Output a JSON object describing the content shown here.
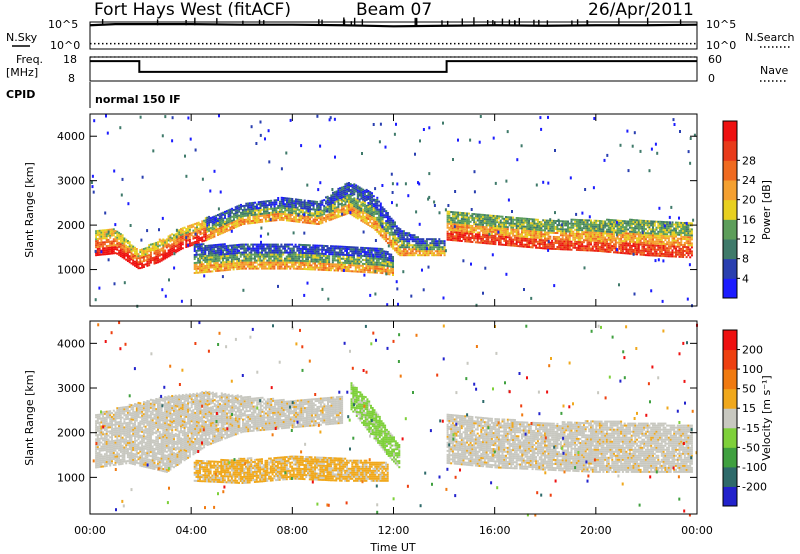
{
  "header": {
    "title": "Fort Hays West (fitACF)",
    "beam": "Beam 07",
    "date": "26/Apr/2011"
  },
  "top_panels": {
    "nsky_label": "N.Sky",
    "nsearch_label": "N.Search",
    "noise_ticks_left": [
      "10^5",
      "10^0"
    ],
    "noise_ticks_right": [
      "10^5",
      "10^0"
    ],
    "freq_label_1": "Freq.",
    "freq_label_2": "[MHz]",
    "freq_ticks": [
      "18",
      "8"
    ],
    "nave_label": "Nave",
    "nave_ticks": [
      "60",
      "0"
    ],
    "cpid_label": "CPID",
    "cpid_value": "normal 150 IF"
  },
  "axes": {
    "xlabel": "Time UT",
    "ylabel": "Slant Range [km]",
    "xticks": [
      "00:00",
      "04:00",
      "08:00",
      "12:00",
      "16:00",
      "20:00",
      "00:00"
    ],
    "yticks": [
      "1000",
      "2000",
      "3000",
      "4000"
    ]
  },
  "power_scale": {
    "label": "Power [dB]",
    "ticks": [
      "4",
      "8",
      "12",
      "16",
      "20",
      "24",
      "28"
    ],
    "colors": [
      "#1c1cff",
      "#2a3fb0",
      "#3f7a6a",
      "#5d9e5a",
      "#e8d020",
      "#f4a030",
      "#ef6a20",
      "#e83a1a",
      "#ee1010"
    ]
  },
  "velocity_scale": {
    "label": "Velocity [m s⁻¹]",
    "ticks": [
      "200",
      "100",
      "50",
      "15",
      "-15",
      "-50",
      "-100",
      "-200"
    ],
    "colors": [
      "#2222cc",
      "#2e6a6a",
      "#3fa03f",
      "#7ed03a",
      "#c8c8c0",
      "#f0a81c",
      "#f07a10",
      "#ee4010",
      "#ee1010"
    ]
  },
  "chart_data": [
    {
      "type": "line",
      "title": "N.Sky / N.Search",
      "xlabel": "",
      "ylabel": "",
      "ylim": [
        0,
        5
      ],
      "series": [
        {
          "name": "N.Sky",
          "x": [
            0,
            1,
            2,
            4,
            6,
            8,
            10,
            12,
            14,
            16,
            18,
            20,
            22,
            24
          ],
          "y": [
            4.4,
            4.6,
            4.6,
            4.6,
            4.5,
            4.5,
            4.4,
            4.2,
            4.3,
            4.4,
            4.3,
            4.4,
            4.4,
            4.5
          ]
        },
        {
          "name": "N.Search",
          "x": [
            0,
            4,
            8,
            12,
            16,
            20,
            24
          ],
          "y": [
            1.0,
            1.0,
            1.0,
            1.0,
            1.0,
            1.0,
            1.0
          ]
        }
      ]
    },
    {
      "type": "line",
      "title": "Freq. [MHz] / Nave",
      "xlabel": "",
      "ylabel": "[MHz]",
      "ylim": [
        8,
        18
      ],
      "series": [
        {
          "name": "Freq.",
          "x": [
            0,
            1.95,
            1.95,
            14.1,
            14.1,
            24
          ],
          "y": [
            16.3,
            16.3,
            11.8,
            11.8,
            16.3,
            16.3
          ]
        },
        {
          "name": "Nave",
          "x": [
            0,
            24
          ],
          "y": [
            18,
            18
          ]
        }
      ]
    },
    {
      "type": "heatmap",
      "title": "Power [dB]",
      "xlabel": "Time UT",
      "ylabel": "Slant Range [km]",
      "xlim": [
        0,
        24
      ],
      "ylim": [
        180,
        4500
      ],
      "bands": [
        {
          "x": [
            0.2,
            1.0,
            1.9,
            2.7,
            3.6,
            4.6
          ],
          "y_low": [
            1300,
            1350,
            1000,
            1150,
            1450,
            1650
          ],
          "y_high": [
            1850,
            1900,
            1400,
            1650,
            1900,
            2150
          ],
          "power": 22
        },
        {
          "x": [
            4.6,
            6.0,
            7.5,
            9.0,
            10.2,
            11.2,
            12.2,
            13.0,
            14.0
          ],
          "y_low": [
            1650,
            2000,
            2100,
            2000,
            2250,
            1900,
            1300,
            1300,
            1300
          ],
          "y_high": [
            2150,
            2450,
            2600,
            2500,
            2950,
            2700,
            1900,
            1700,
            1650
          ],
          "power": 12
        },
        {
          "x": [
            4.1,
            6.0,
            8.0,
            10.0,
            11.5,
            12.0
          ],
          "y_low": [
            900,
            1000,
            1000,
            950,
            900,
            850
          ],
          "y_high": [
            1550,
            1550,
            1550,
            1500,
            1450,
            1300
          ],
          "power": 10
        },
        {
          "x": [
            14.1,
            16.0,
            18.0,
            20.0,
            22.0,
            23.8
          ],
          "y_low": [
            1650,
            1550,
            1450,
            1400,
            1300,
            1250
          ],
          "y_high": [
            2300,
            2200,
            2100,
            2100,
            2100,
            2050
          ],
          "power": 20
        }
      ]
    },
    {
      "type": "heatmap",
      "title": "Velocity [m s⁻¹]",
      "xlabel": "Time UT",
      "ylabel": "Slant Range [km]",
      "xlim": [
        0,
        24
      ],
      "ylim": [
        180,
        4500
      ],
      "bands": [
        {
          "x": [
            0.2,
            1.5,
            3.0,
            4.6,
            6.0,
            8.0,
            10.0
          ],
          "y_low": [
            1200,
            1300,
            1100,
            1700,
            2000,
            2100,
            2200
          ],
          "y_high": [
            2400,
            2600,
            2800,
            2900,
            2800,
            2700,
            2800
          ],
          "velocity": 0
        },
        {
          "x": [
            4.1,
            6.0,
            8.0,
            10.0,
            11.8
          ],
          "y_low": [
            900,
            850,
            950,
            900,
            900
          ],
          "y_high": [
            1350,
            1400,
            1450,
            1400,
            1300
          ],
          "velocity": -50
        },
        {
          "x": [
            10.3,
            11.0,
            11.7,
            12.2
          ],
          "y_low": [
            2500,
            2000,
            1500,
            1200
          ],
          "y_high": [
            3100,
            2700,
            2100,
            1700
          ],
          "velocity": 30
        },
        {
          "x": [
            14.1,
            16.0,
            18.0,
            20.0,
            22.0,
            23.8
          ],
          "y_low": [
            1300,
            1200,
            1150,
            1100,
            1100,
            1100
          ],
          "y_high": [
            2400,
            2300,
            2200,
            2250,
            2200,
            2150
          ],
          "velocity": 0
        }
      ]
    }
  ]
}
